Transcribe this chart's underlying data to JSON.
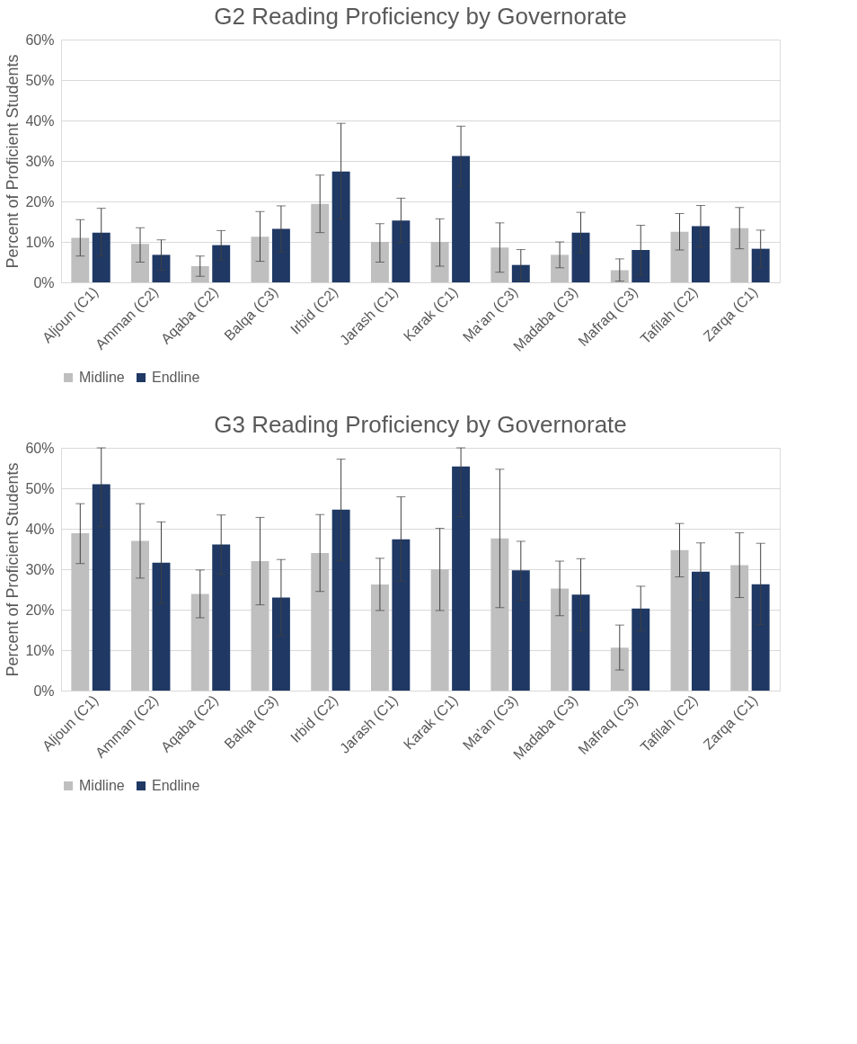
{
  "chart_data": [
    {
      "type": "bar",
      "title": "G2 Reading Proficiency by Governorate",
      "ylabel": "Percent of Proficient Students",
      "categories": [
        "Aljoun (C1)",
        "Amman (C2)",
        "Aqaba (C2)",
        "Balqa (C3)",
        "Irbid (C2)",
        "Jarash (C1)",
        "Karak (C1)",
        "Ma'an (C3)",
        "Madaba (C3)",
        "Mafraq (C3)",
        "Tafilah (C2)",
        "Zarqa (C1)"
      ],
      "series": [
        {
          "name": "Midline",
          "color": "#bfbfbf",
          "values": [
            11,
            9.5,
            4,
            11.3,
            19.4,
            10,
            10,
            8.6,
            6.8,
            3,
            12.5,
            13.4
          ],
          "errors": [
            [
              6.5,
              15.5
            ],
            [
              5,
              13.5
            ],
            [
              1.5,
              6.5
            ],
            [
              5.2,
              17.5
            ],
            [
              12.3,
              26.5
            ],
            [
              5,
              14.5
            ],
            [
              4,
              15.7
            ],
            [
              2.5,
              14.7
            ],
            [
              3.6,
              10
            ],
            [
              0.3,
              5.8
            ],
            [
              8,
              17
            ],
            [
              8.3,
              18.5
            ]
          ]
        },
        {
          "name": "Endline",
          "color": "#1f3864",
          "values": [
            12.3,
            6.8,
            9.2,
            13.2,
            27.4,
            15.3,
            31.2,
            4.3,
            12.3,
            8,
            13.9,
            8.3
          ],
          "errors": [
            [
              6.5,
              18.3
            ],
            [
              3,
              10.5
            ],
            [
              5.5,
              12.8
            ],
            [
              7.5,
              18.9
            ],
            [
              15.6,
              39.3
            ],
            [
              9.8,
              20.8
            ],
            [
              23.8,
              38.6
            ],
            [
              0.5,
              8.1
            ],
            [
              7.3,
              17.3
            ],
            [
              1.8,
              14.1
            ],
            [
              8.8,
              19
            ],
            [
              3.7,
              12.9
            ]
          ]
        }
      ],
      "ylim": [
        0,
        60
      ],
      "yticks": [
        {
          "value": 0,
          "label": "0%"
        },
        {
          "value": 10,
          "label": "10%"
        },
        {
          "value": 20,
          "label": "20%"
        },
        {
          "value": 30,
          "label": "30%"
        },
        {
          "value": 40,
          "label": "40%"
        },
        {
          "value": 50,
          "label": "50%"
        },
        {
          "value": 60,
          "label": "60%"
        }
      ],
      "grid": "y",
      "legend": "bottom"
    },
    {
      "type": "bar",
      "title": "G3 Reading Proficiency by Governorate",
      "ylabel": "Percent of Proficient Students",
      "categories": [
        "Aljoun (C1)",
        "Amman (C2)",
        "Aqaba (C2)",
        "Balqa (C3)",
        "Irbid (C2)",
        "Jarash (C1)",
        "Karak (C1)",
        "Ma'an (C3)",
        "Madaba (C3)",
        "Mafraq (C3)",
        "Tafilah (C2)",
        "Zarqa (C1)"
      ],
      "series": [
        {
          "name": "Midline",
          "color": "#bfbfbf",
          "values": [
            38.9,
            37,
            23.9,
            32,
            34,
            26.2,
            30,
            37.6,
            25.2,
            10.6,
            34.7,
            31
          ],
          "errors": [
            [
              31.4,
              46.2
            ],
            [
              27.8,
              46.2
            ],
            [
              18,
              29.8
            ],
            [
              21.2,
              42.8
            ],
            [
              24.5,
              43.5
            ],
            [
              19.8,
              32.7
            ],
            [
              19.8,
              40.1
            ],
            [
              20.5,
              54.7
            ],
            [
              18.5,
              32
            ],
            [
              5.1,
              16.2
            ],
            [
              28.1,
              41.3
            ],
            [
              23,
              39
            ]
          ]
        },
        {
          "name": "Endline",
          "color": "#1f3864",
          "values": [
            51,
            31.6,
            36.1,
            23,
            44.7,
            37.4,
            55.4,
            29.7,
            23.7,
            20.3,
            29.4,
            26.3
          ],
          "errors": [
            [
              40.5,
              60
            ],
            [
              21.5,
              41.7
            ],
            [
              28.7,
              43.4
            ],
            [
              13.6,
              32.4
            ],
            [
              32.2,
              57.2
            ],
            [
              27,
              47.9
            ],
            [
              43,
              60
            ],
            [
              22.3,
              36.9
            ],
            [
              14.8,
              32.6
            ],
            [
              14.8,
              25.8
            ],
            [
              22.4,
              36.5
            ],
            [
              16.3,
              36.4
            ]
          ]
        }
      ],
      "ylim": [
        0,
        60
      ],
      "yticks": [
        {
          "value": 0,
          "label": "0%"
        },
        {
          "value": 10,
          "label": "10%"
        },
        {
          "value": 20,
          "label": "20%"
        },
        {
          "value": 30,
          "label": "30%"
        },
        {
          "value": 40,
          "label": "40%"
        },
        {
          "value": 50,
          "label": "50%"
        },
        {
          "value": 60,
          "label": "60%"
        }
      ],
      "grid": "y",
      "legend": "bottom"
    }
  ]
}
